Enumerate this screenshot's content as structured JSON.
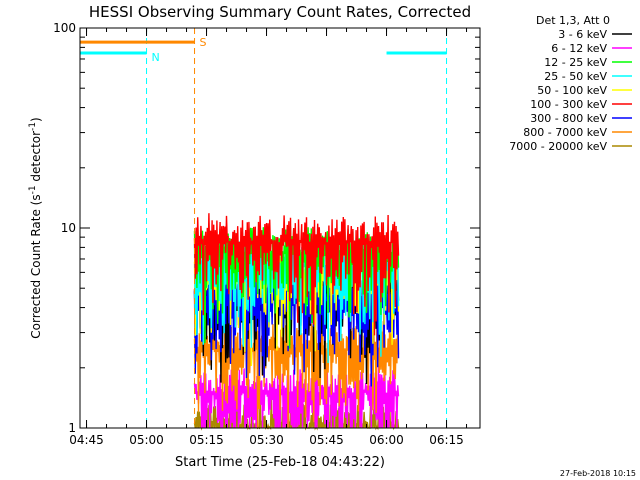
{
  "chart_data": {
    "type": "line",
    "title": "HESSI Observing Summary Count Rates, Corrected",
    "xlabel": "Start Time (25-Feb-18 04:43:22)",
    "ylabel": "Corrected Count Rate (s⁻¹ detector⁻¹)",
    "ylabel_main": "Corrected Count Rate (s",
    "ylabel_sup1": "-1",
    "ylabel_mid": " detector",
    "ylabel_sup2": "-1",
    "ylabel_end": ")",
    "yscale": "log",
    "ylim": [
      1,
      100
    ],
    "xlim": [
      "04:43:22",
      "06:23:22"
    ],
    "x_tick_labels": [
      "04:45",
      "05:00",
      "05:15",
      "05:30",
      "05:45",
      "06:00",
      "06:15"
    ],
    "y_tick_labels": [
      "1",
      "10",
      "100"
    ],
    "legend_title": "Det 1,3, Att 0",
    "series": [
      {
        "name": "3 - 6 keV",
        "color": "#000000",
        "approx_level": 4.5
      },
      {
        "name": "6 - 12 keV",
        "color": "#ff00ff",
        "approx_level": 1.5
      },
      {
        "name": "12 - 25 keV",
        "color": "#00ff00",
        "approx_level": 7.5
      },
      {
        "name": "25 - 50 keV",
        "color": "#00ffff",
        "approx_level": 6.5
      },
      {
        "name": "50 - 100 keV",
        "color": "#ffff00",
        "approx_level": 6.0
      },
      {
        "name": "100 - 300 keV",
        "color": "#ff0000",
        "approx_level": 8.5
      },
      {
        "name": "300 - 800 keV",
        "color": "#0000ff",
        "approx_level": 4.5
      },
      {
        "name": "800 - 7000 keV",
        "color": "#ff8800",
        "approx_level": 2.5
      },
      {
        "name": "7000 - 20000 keV",
        "color": "#aa8800",
        "approx_level": 1.0
      }
    ],
    "data_interval": [
      "05:12",
      "06:03"
    ],
    "flags": [
      {
        "label": "N",
        "color": "#00ffff",
        "intervals": [
          [
            "04:43:22",
            "05:00"
          ],
          [
            "06:00",
            "06:15"
          ]
        ],
        "level": 75
      },
      {
        "label": "S",
        "color": "#ff8800",
        "intervals": [
          [
            "04:43:22",
            "05:12"
          ]
        ],
        "level": 85
      }
    ],
    "grid": false,
    "legend_position": "top-right"
  },
  "footer": {
    "date": "27-Feb-2018 10:15"
  },
  "colors": {
    "background": "#ffffff",
    "axis": "#000000"
  }
}
